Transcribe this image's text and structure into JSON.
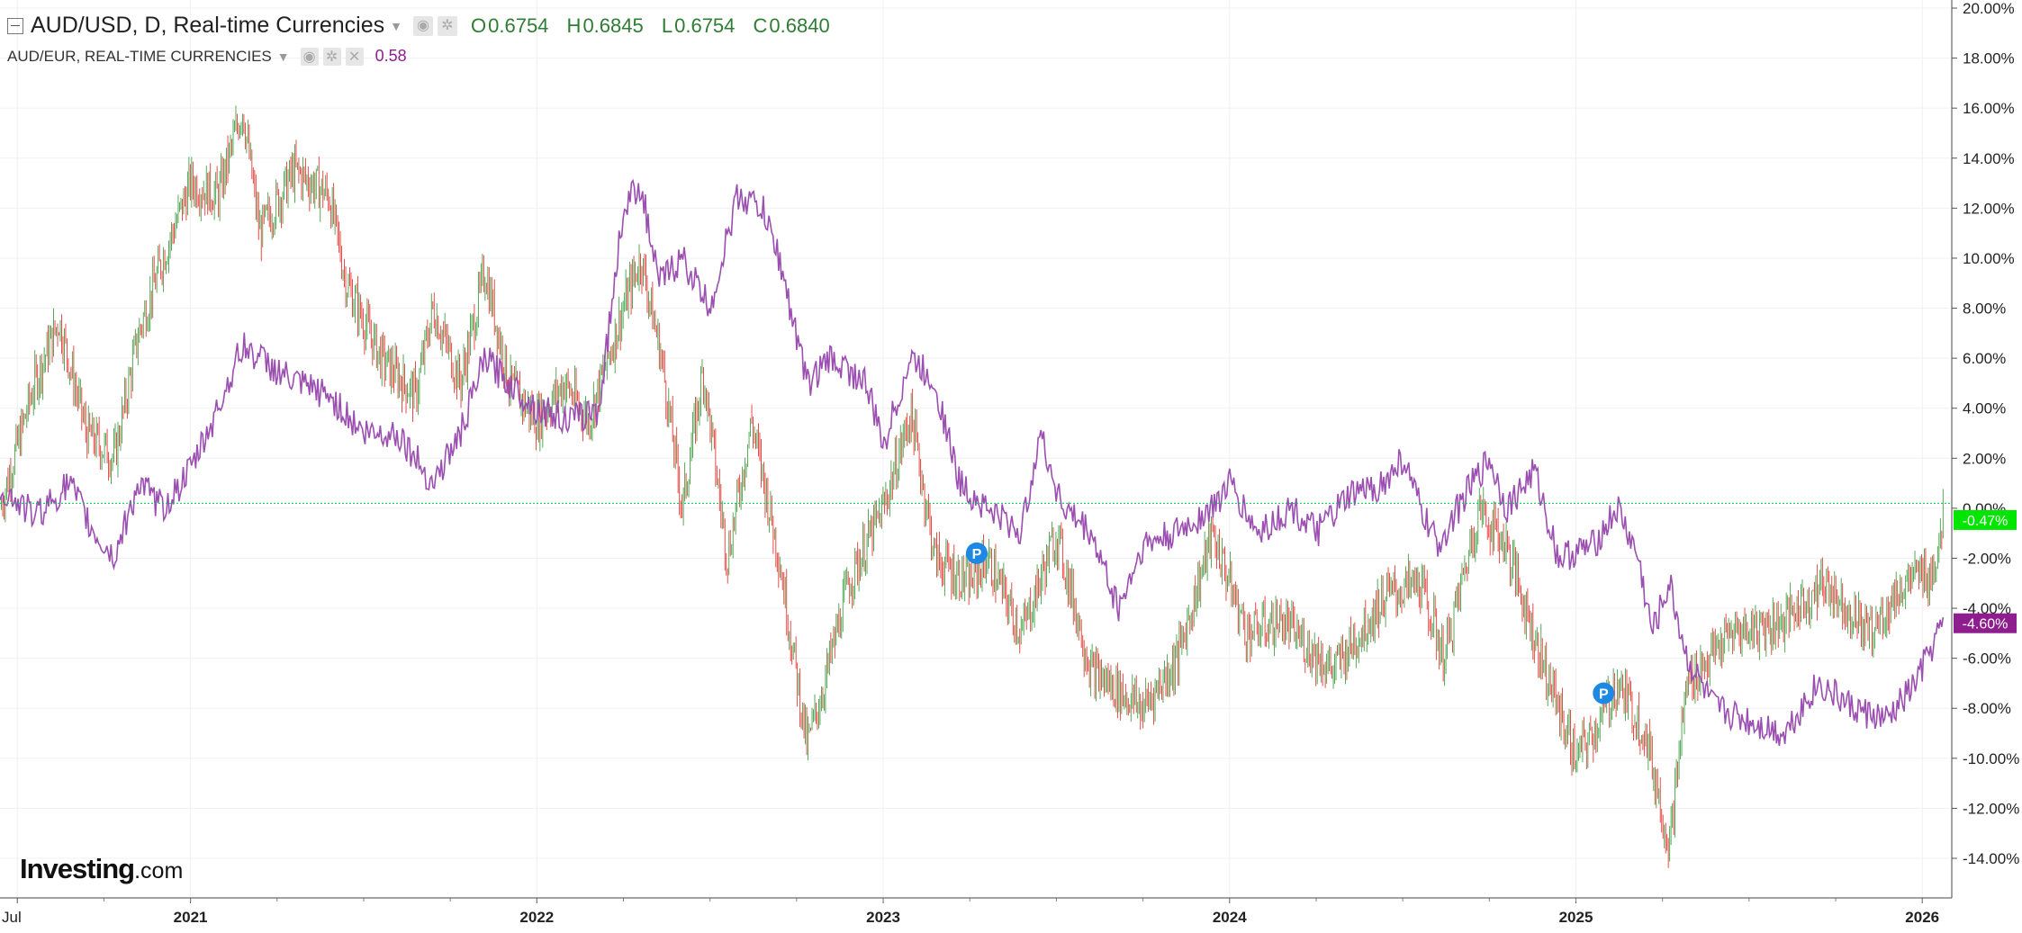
{
  "legend": {
    "main_title": "AUD/USD, D, Real-time Currencies",
    "open_label": "O",
    "open": "0.6754",
    "high_label": "H",
    "high": "0.6845",
    "low_label": "L",
    "low": "0.6754",
    "close_label": "C",
    "close": "0.6840",
    "compare_title": "AUD/EUR, REAL-TIME CURRENCIES",
    "compare_value": "0.58"
  },
  "icons": [
    "collapse-icon",
    "dropdown-caret-icon",
    "eye-icon",
    "settings-icon",
    "close-icon"
  ],
  "logo": {
    "brand": "Investing",
    "suffix": ".com"
  },
  "markers": [
    {
      "label": "P",
      "date": 2023.27,
      "y": -1.8
    },
    {
      "label": "P",
      "date": 2025.08,
      "y": -7.4
    }
  ],
  "colors": {
    "up": "#43a047",
    "down": "#e53935",
    "compare": "#9b4fb0",
    "base_line": "#00c853",
    "badge_main": "#00e600",
    "badge_compare": "#8e1e8e",
    "marker": "#1e88e5"
  },
  "chart_data": {
    "type": "line",
    "yaxis": {
      "unit": "percent",
      "range": [
        -14,
        20
      ],
      "ticks": [
        "20.00%",
        "18.00%",
        "16.00%",
        "14.00%",
        "12.00%",
        "10.00%",
        "8.00%",
        "6.00%",
        "4.00%",
        "2.00%",
        "0.00%",
        "-2.00%",
        "-4.00%",
        "-6.00%",
        "-8.00%",
        "-10.00%",
        "-12.00%",
        "-14.00%"
      ]
    },
    "xaxis": {
      "range": [
        2020.45,
        2026.08
      ],
      "ticks": [
        {
          "label": "Jul",
          "date": 2020.5
        },
        {
          "label": "2021",
          "date": 2021.0
        },
        {
          "label": "2022",
          "date": 2022.0
        },
        {
          "label": "2023",
          "date": 2023.0
        },
        {
          "label": "2024",
          "date": 2024.0
        },
        {
          "label": "2025",
          "date": 2025.0
        },
        {
          "label": "2026",
          "date": 2026.0
        }
      ]
    },
    "grid": true,
    "series": [
      {
        "name": "AUD/USD, D, Real-time Currencies",
        "style": "candlestick",
        "last_label": "-0.47%",
        "points": [
          [
            2020.45,
            0
          ],
          [
            2020.55,
            5
          ],
          [
            2020.62,
            7.5
          ],
          [
            2020.7,
            3
          ],
          [
            2020.78,
            2
          ],
          [
            2020.85,
            7
          ],
          [
            2020.92,
            10
          ],
          [
            2021.0,
            13
          ],
          [
            2021.08,
            12.5
          ],
          [
            2021.15,
            16
          ],
          [
            2021.2,
            11
          ],
          [
            2021.3,
            13.5
          ],
          [
            2021.4,
            12.5
          ],
          [
            2021.45,
            9
          ],
          [
            2021.55,
            6
          ],
          [
            2021.65,
            4.5
          ],
          [
            2021.7,
            8
          ],
          [
            2021.78,
            5
          ],
          [
            2021.85,
            9.5
          ],
          [
            2021.92,
            5
          ],
          [
            2022.0,
            3.5
          ],
          [
            2022.08,
            5
          ],
          [
            2022.15,
            3.5
          ],
          [
            2022.25,
            8
          ],
          [
            2022.3,
            10
          ],
          [
            2022.36,
            6
          ],
          [
            2022.42,
            0
          ],
          [
            2022.48,
            5.5
          ],
          [
            2022.55,
            -2
          ],
          [
            2022.62,
            3.5
          ],
          [
            2022.7,
            -2
          ],
          [
            2022.78,
            -9.5
          ],
          [
            2022.83,
            -7
          ],
          [
            2022.9,
            -3
          ],
          [
            2023.0,
            0
          ],
          [
            2023.08,
            3.8
          ],
          [
            2023.15,
            -2
          ],
          [
            2023.25,
            -3
          ],
          [
            2023.3,
            -2
          ],
          [
            2023.4,
            -5
          ],
          [
            2023.5,
            -1
          ],
          [
            2023.6,
            -6.5
          ],
          [
            2023.75,
            -8
          ],
          [
            2023.85,
            -6
          ],
          [
            2023.95,
            -1
          ],
          [
            2024.05,
            -5
          ],
          [
            2024.15,
            -4.5
          ],
          [
            2024.3,
            -6.5
          ],
          [
            2024.45,
            -3.5
          ],
          [
            2024.55,
            -3
          ],
          [
            2024.62,
            -6
          ],
          [
            2024.72,
            0
          ],
          [
            2024.8,
            -1.5
          ],
          [
            2024.9,
            -6
          ],
          [
            2025.0,
            -10
          ],
          [
            2025.05,
            -9
          ],
          [
            2025.12,
            -7
          ],
          [
            2025.2,
            -9
          ],
          [
            2025.27,
            -13.5
          ],
          [
            2025.32,
            -7
          ],
          [
            2025.45,
            -5
          ],
          [
            2025.6,
            -4.5
          ],
          [
            2025.72,
            -3
          ],
          [
            2025.85,
            -5
          ],
          [
            2025.95,
            -3
          ],
          [
            2026.03,
            -2.5
          ],
          [
            2026.06,
            -0.47
          ]
        ]
      },
      {
        "name": "AUD/EUR, REAL-TIME CURRENCIES",
        "style": "line",
        "last_label": "-4.60%",
        "points": [
          [
            2020.45,
            0.8
          ],
          [
            2020.55,
            -0.3
          ],
          [
            2020.6,
            0.3
          ],
          [
            2020.65,
            1
          ],
          [
            2020.72,
            -1
          ],
          [
            2020.78,
            -2
          ],
          [
            2020.85,
            1
          ],
          [
            2020.92,
            0
          ],
          [
            2021.0,
            1.5
          ],
          [
            2021.08,
            4
          ],
          [
            2021.15,
            6.5
          ],
          [
            2021.2,
            6
          ],
          [
            2021.3,
            5
          ],
          [
            2021.4,
            4.5
          ],
          [
            2021.5,
            3
          ],
          [
            2021.6,
            3
          ],
          [
            2021.7,
            1
          ],
          [
            2021.78,
            3
          ],
          [
            2021.85,
            6
          ],
          [
            2021.92,
            5
          ],
          [
            2022.0,
            4
          ],
          [
            2022.1,
            3.5
          ],
          [
            2022.18,
            4
          ],
          [
            2022.25,
            12
          ],
          [
            2022.3,
            13
          ],
          [
            2022.35,
            9
          ],
          [
            2022.42,
            10
          ],
          [
            2022.5,
            8
          ],
          [
            2022.58,
            12.5
          ],
          [
            2022.65,
            12
          ],
          [
            2022.7,
            10
          ],
          [
            2022.78,
            5
          ],
          [
            2022.85,
            6
          ],
          [
            2022.95,
            5
          ],
          [
            2023.0,
            2.5
          ],
          [
            2023.08,
            6
          ],
          [
            2023.15,
            5
          ],
          [
            2023.22,
            1
          ],
          [
            2023.3,
            0
          ],
          [
            2023.4,
            -1
          ],
          [
            2023.45,
            3
          ],
          [
            2023.52,
            0
          ],
          [
            2023.6,
            -1
          ],
          [
            2023.68,
            -4
          ],
          [
            2023.75,
            -1.5
          ],
          [
            2023.85,
            -1
          ],
          [
            2023.95,
            0
          ],
          [
            2024.0,
            1
          ],
          [
            2024.08,
            -1
          ],
          [
            2024.18,
            0
          ],
          [
            2024.25,
            -1
          ],
          [
            2024.35,
            0.5
          ],
          [
            2024.45,
            1
          ],
          [
            2024.5,
            2
          ],
          [
            2024.55,
            0
          ],
          [
            2024.6,
            -1.5
          ],
          [
            2024.68,
            0.5
          ],
          [
            2024.75,
            2
          ],
          [
            2024.8,
            0
          ],
          [
            2024.88,
            1.5
          ],
          [
            2024.95,
            -2
          ],
          [
            2025.05,
            -1.5
          ],
          [
            2025.12,
            0
          ],
          [
            2025.18,
            -2
          ],
          [
            2025.22,
            -5
          ],
          [
            2025.27,
            -3
          ],
          [
            2025.32,
            -6
          ],
          [
            2025.4,
            -8
          ],
          [
            2025.5,
            -8.5
          ],
          [
            2025.6,
            -9
          ],
          [
            2025.7,
            -7
          ],
          [
            2025.8,
            -8
          ],
          [
            2025.9,
            -8.5
          ],
          [
            2025.98,
            -7
          ],
          [
            2026.03,
            -5.5
          ],
          [
            2026.06,
            -4.6
          ]
        ]
      }
    ],
    "base_line": 0.2
  }
}
